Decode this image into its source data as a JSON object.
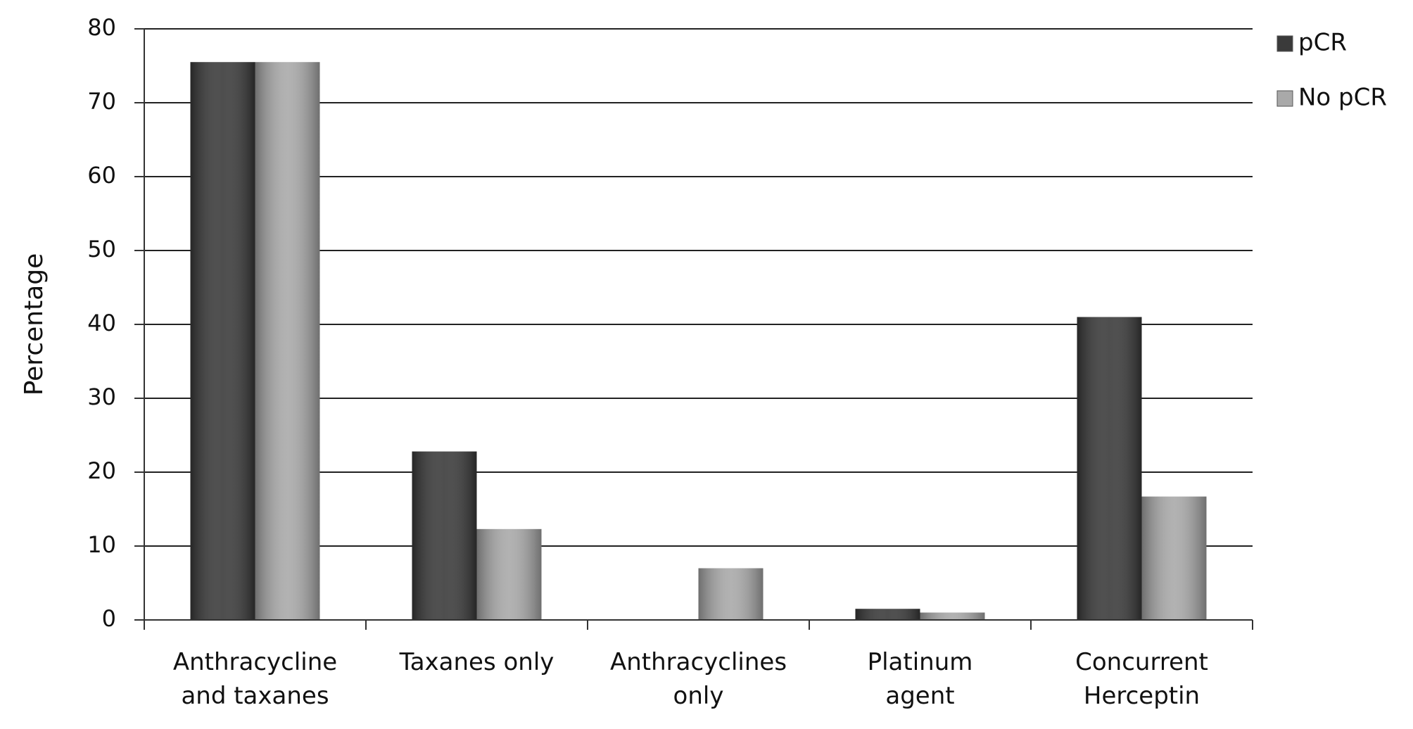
{
  "chart_data": {
    "type": "bar",
    "y_label": "Percentage",
    "categories": [
      "Anthracycline\nand taxanes",
      "Taxanes only",
      "Anthracyclines\nonly",
      "Platinum\nagent",
      "Concurrent\nHerceptin"
    ],
    "series": [
      {
        "name": "pCR",
        "color": "#3a3a3a",
        "values": [
          75.5,
          22.8,
          0,
          1.5,
          41
        ]
      },
      {
        "name": "No pCR",
        "color": "#a9a9a9",
        "values": [
          75.5,
          12.3,
          7,
          1,
          16.7
        ]
      }
    ],
    "ylim": [
      0,
      80
    ],
    "yticks": [
      0,
      10,
      20,
      30,
      40,
      50,
      60,
      70,
      80
    ],
    "grid": true,
    "legend": "top-right"
  }
}
